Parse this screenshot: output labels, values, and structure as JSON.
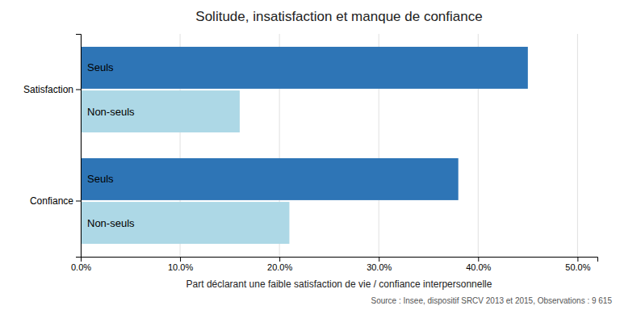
{
  "chart_data": {
    "type": "bar",
    "orientation": "horizontal",
    "title": "Solitude, insatisfaction et manque de confiance",
    "xlabel": "Part déclarant une faible satisfaction de vie / confiance interpersonnelle",
    "annotations": [
      "Source : Insee, dispositif SRCV 2013 et 2015, Observations : 9 615"
    ],
    "categories": [
      "Satisfaction",
      "Confiance"
    ],
    "series": [
      {
        "name": "Seuls",
        "color": "#2e75b6",
        "values": [
          0.45,
          0.38
        ]
      },
      {
        "name": "Non-seuls",
        "color": "#add8e6",
        "values": [
          0.16,
          0.21
        ]
      }
    ],
    "xlim": [
      0,
      0.52
    ],
    "xticks": [
      {
        "value": 0.0,
        "label": "0.0%"
      },
      {
        "value": 0.1,
        "label": "10.0%"
      },
      {
        "value": 0.2,
        "label": "20.0%"
      },
      {
        "value": 0.3,
        "label": "30.0%"
      },
      {
        "value": 0.4,
        "label": "40.0%"
      },
      {
        "value": 0.5,
        "label": "50.0%"
      }
    ],
    "grid": true
  }
}
